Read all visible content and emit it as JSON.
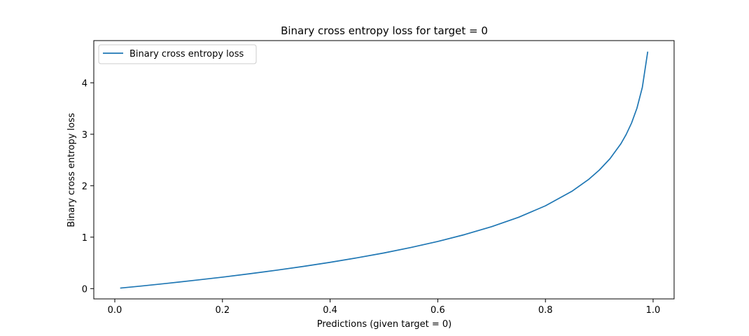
{
  "chart_data": {
    "type": "line",
    "title": "Binary cross entropy loss for target = 0",
    "xlabel": "Predictions (given target = 0)",
    "ylabel": "Binary cross entropy loss",
    "xlim": [
      -0.039,
      1.039
    ],
    "ylim": [
      -0.2,
      4.82
    ],
    "xticks": [
      0.0,
      0.2,
      0.4,
      0.6,
      0.8,
      1.0
    ],
    "xtick_labels": [
      "0.0",
      "0.2",
      "0.4",
      "0.6",
      "0.8",
      "1.0"
    ],
    "yticks": [
      0,
      1,
      2,
      3,
      4
    ],
    "ytick_labels": [
      "0",
      "1",
      "2",
      "3",
      "4"
    ],
    "grid": false,
    "legend_position": "top-left",
    "series": [
      {
        "name": "Binary cross entropy loss",
        "color": "#1f77b4",
        "x": [
          0.01,
          0.05,
          0.1,
          0.15,
          0.2,
          0.25,
          0.3,
          0.35,
          0.4,
          0.45,
          0.5,
          0.55,
          0.6,
          0.65,
          0.7,
          0.75,
          0.8,
          0.85,
          0.88,
          0.9,
          0.92,
          0.94,
          0.95,
          0.96,
          0.97,
          0.98,
          0.99
        ],
        "y": [
          0.01,
          0.051,
          0.105,
          0.163,
          0.223,
          0.288,
          0.357,
          0.431,
          0.511,
          0.598,
          0.693,
          0.799,
          0.916,
          1.05,
          1.204,
          1.386,
          1.609,
          1.897,
          2.12,
          2.303,
          2.526,
          2.813,
          2.996,
          3.219,
          3.507,
          3.912,
          4.605
        ]
      }
    ]
  }
}
